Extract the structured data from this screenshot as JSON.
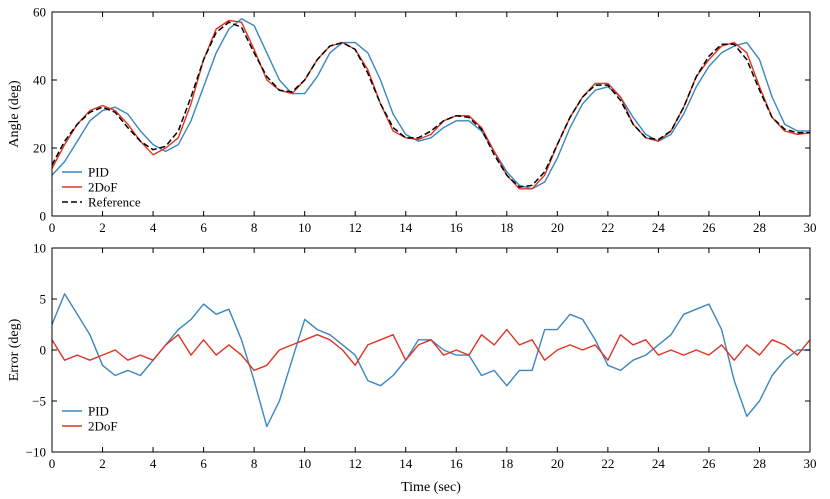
{
  "colors": {
    "pid": "#3a86c0",
    "twodof": "#e03323",
    "reference": "#000000"
  },
  "chart_data": [
    {
      "type": "line",
      "ylabel": "Angle (deg)",
      "xlim": [
        0,
        30
      ],
      "ylim": [
        0,
        60
      ],
      "xticks": [
        0,
        2,
        4,
        6,
        8,
        10,
        12,
        14,
        16,
        18,
        20,
        22,
        24,
        26,
        28,
        30
      ],
      "xtick_labels": [
        "0",
        "2",
        "4",
        "6",
        "8",
        "10",
        "12",
        "14",
        "16",
        "18",
        "20",
        "22",
        "24",
        "26",
        "28",
        "30"
      ],
      "yticks": [
        0,
        20,
        40,
        60
      ],
      "ytick_labels": [
        "0",
        "20",
        "40",
        "60"
      ],
      "legend_position": "bottom-left",
      "series": [
        {
          "name": "PID",
          "color_key": "pid",
          "style": "solid",
          "x": [
            0,
            0.5,
            1,
            1.5,
            2,
            2.5,
            3,
            3.5,
            4,
            4.5,
            5,
            5.5,
            6,
            6.5,
            7,
            7.5,
            8,
            8.5,
            9,
            9.5,
            10,
            10.5,
            11,
            11.5,
            12,
            12.5,
            13,
            13.5,
            14,
            14.5,
            15,
            15.5,
            16,
            16.5,
            17,
            17.5,
            18,
            18.5,
            19,
            19.5,
            20,
            20.5,
            21,
            21.5,
            22,
            22.5,
            23,
            23.5,
            24,
            24.5,
            25,
            25.5,
            26,
            26.5,
            27,
            27.5,
            28,
            28.5,
            29,
            29.5,
            30
          ],
          "y": [
            12,
            16,
            22,
            28,
            31,
            32,
            30,
            25,
            21,
            19,
            21,
            28,
            38,
            48,
            55,
            58,
            56,
            48,
            40,
            36,
            36,
            41,
            48,
            51,
            51,
            48,
            40,
            30,
            24,
            22,
            23,
            26,
            28,
            28,
            25,
            19,
            13,
            9,
            8,
            10,
            17,
            26,
            33,
            37,
            38,
            35,
            29,
            24,
            22,
            24,
            30,
            38,
            44,
            48,
            50,
            51,
            46,
            35,
            27,
            25,
            25
          ]
        },
        {
          "name": "2DoF",
          "color_key": "twodof",
          "style": "solid",
          "x": [
            0,
            0.5,
            1,
            1.5,
            2,
            2.5,
            3,
            3.5,
            4,
            4.5,
            5,
            5.5,
            6,
            6.5,
            7,
            7.5,
            8,
            8.5,
            9,
            9.5,
            10,
            10.5,
            11,
            11.5,
            12,
            12.5,
            13,
            13.5,
            14,
            14.5,
            15,
            15.5,
            16,
            16.5,
            17,
            17.5,
            18,
            18.5,
            19,
            19.5,
            20,
            20.5,
            21,
            21.5,
            22,
            22.5,
            23,
            23.5,
            24,
            24.5,
            25,
            25.5,
            26,
            26.5,
            27,
            27.5,
            28,
            28.5,
            29,
            29.5,
            30
          ],
          "y": [
            14,
            21,
            27,
            31,
            32.5,
            31,
            27,
            22,
            18,
            20,
            23,
            33,
            46,
            55,
            57.5,
            57,
            49,
            40,
            37,
            36,
            40,
            46,
            50,
            51,
            49,
            43,
            33,
            25,
            23,
            22.5,
            24,
            28,
            29.5,
            29.5,
            26,
            19,
            12,
            8,
            8,
            12,
            21,
            29,
            35,
            39,
            39,
            35,
            27,
            23,
            22,
            25,
            32,
            41,
            46,
            50,
            51,
            48,
            38,
            29,
            25,
            24,
            24.5
          ]
        },
        {
          "name": "Reference",
          "color_key": "reference",
          "style": "dashed",
          "x": [
            0,
            0.5,
            1,
            1.5,
            2,
            2.5,
            3,
            3.5,
            4,
            4.5,
            5,
            5.5,
            6,
            6.5,
            7,
            7.5,
            8,
            8.5,
            9,
            9.5,
            10,
            10.5,
            11,
            11.5,
            12,
            12.5,
            13,
            13.5,
            14,
            14.5,
            15,
            15.5,
            16,
            16.5,
            17,
            17.5,
            18,
            18.5,
            19,
            19.5,
            20,
            20.5,
            21,
            21.5,
            22,
            22.5,
            23,
            23.5,
            24,
            24.5,
            25,
            25.5,
            26,
            26.5,
            27,
            27.5,
            28,
            28.5,
            29,
            29.5,
            30
          ],
          "y": [
            15,
            22,
            27,
            30.5,
            32,
            30.5,
            26,
            22,
            19.5,
            20.5,
            25,
            35,
            46,
            54,
            57,
            55.5,
            48,
            41,
            37,
            36.5,
            40,
            46,
            50,
            51,
            49,
            42,
            33,
            26,
            23,
            23,
            25,
            28,
            29.5,
            29,
            25.5,
            18,
            12,
            8.5,
            9,
            13,
            21,
            29,
            35,
            38.5,
            38.5,
            34,
            27,
            23,
            22.5,
            25,
            32,
            41,
            47,
            50.5,
            50.5,
            46,
            37,
            29,
            25.5,
            24.5,
            24.5
          ]
        }
      ]
    },
    {
      "type": "line",
      "xlabel": "Time (sec)",
      "ylabel": "Error (deg)",
      "xlim": [
        0,
        30
      ],
      "ylim": [
        -10,
        10
      ],
      "xticks": [
        0,
        2,
        4,
        6,
        8,
        10,
        12,
        14,
        16,
        18,
        20,
        22,
        24,
        26,
        28,
        30
      ],
      "xtick_labels": [
        "0",
        "2",
        "4",
        "6",
        "8",
        "10",
        "12",
        "14",
        "16",
        "18",
        "20",
        "22",
        "24",
        "26",
        "28",
        "30"
      ],
      "yticks": [
        -10,
        -5,
        0,
        5,
        10
      ],
      "ytick_labels": [
        "−10",
        "−5",
        "0",
        "5",
        "10"
      ],
      "legend_position": "bottom-left",
      "series": [
        {
          "name": "PID",
          "color_key": "pid",
          "style": "solid",
          "x": [
            0,
            0.5,
            1,
            1.5,
            2,
            2.5,
            3,
            3.5,
            4,
            4.5,
            5,
            5.5,
            6,
            6.5,
            7,
            7.5,
            8,
            8.5,
            9,
            9.5,
            10,
            10.5,
            11,
            11.5,
            12,
            12.5,
            13,
            13.5,
            14,
            14.5,
            15,
            15.5,
            16,
            16.5,
            17,
            17.5,
            18,
            18.5,
            19,
            19.5,
            20,
            20.5,
            21,
            21.5,
            22,
            22.5,
            23,
            23.5,
            24,
            24.5,
            25,
            25.5,
            26,
            26.5,
            27,
            27.5,
            28,
            28.5,
            29,
            29.5,
            30
          ],
          "y": [
            2.5,
            5.5,
            3.5,
            1.5,
            -1.5,
            -2.5,
            -2,
            -2.5,
            -1,
            0.5,
            2,
            3,
            4.5,
            3.5,
            4,
            1,
            -3,
            -7.5,
            -5,
            -1,
            3,
            2,
            1.5,
            0.5,
            -0.5,
            -3,
            -3.5,
            -2.5,
            -1,
            1,
            1,
            0,
            -0.5,
            -0.5,
            -2.5,
            -2,
            -3.5,
            -2,
            -2,
            2,
            2,
            3.5,
            3,
            1,
            -1.5,
            -2,
            -1,
            -0.5,
            0.5,
            1.5,
            3.5,
            4,
            4.5,
            2,
            -3,
            -6.5,
            -5,
            -2.5,
            -1,
            0,
            0
          ]
        },
        {
          "name": "2DoF",
          "color_key": "twodof",
          "style": "solid",
          "x": [
            0,
            0.5,
            1,
            1.5,
            2,
            2.5,
            3,
            3.5,
            4,
            4.5,
            5,
            5.5,
            6,
            6.5,
            7,
            7.5,
            8,
            8.5,
            9,
            9.5,
            10,
            10.5,
            11,
            11.5,
            12,
            12.5,
            13,
            13.5,
            14,
            14.5,
            15,
            15.5,
            16,
            16.5,
            17,
            17.5,
            18,
            18.5,
            19,
            19.5,
            20,
            20.5,
            21,
            21.5,
            22,
            22.5,
            23,
            23.5,
            24,
            24.5,
            25,
            25.5,
            26,
            26.5,
            27,
            27.5,
            28,
            28.5,
            29,
            29.5,
            30
          ],
          "y": [
            1,
            -1,
            -0.5,
            -1,
            -0.5,
            0,
            -1,
            -0.5,
            -1,
            0.5,
            1.5,
            -0.5,
            1,
            -0.5,
            0.5,
            -0.5,
            -2,
            -1.5,
            0,
            0.5,
            1,
            1.5,
            1,
            0,
            -1.5,
            0.5,
            1,
            1.5,
            -1,
            0.5,
            1,
            -0.5,
            0,
            -0.5,
            1.5,
            0.5,
            2,
            0.5,
            1,
            -1,
            0,
            0.5,
            0,
            0.5,
            -1,
            1.5,
            0.5,
            1,
            -0.5,
            0,
            -0.5,
            0,
            -0.5,
            0.5,
            -1,
            0.5,
            -0.5,
            1,
            0.5,
            -0.5,
            1
          ]
        }
      ]
    }
  ]
}
